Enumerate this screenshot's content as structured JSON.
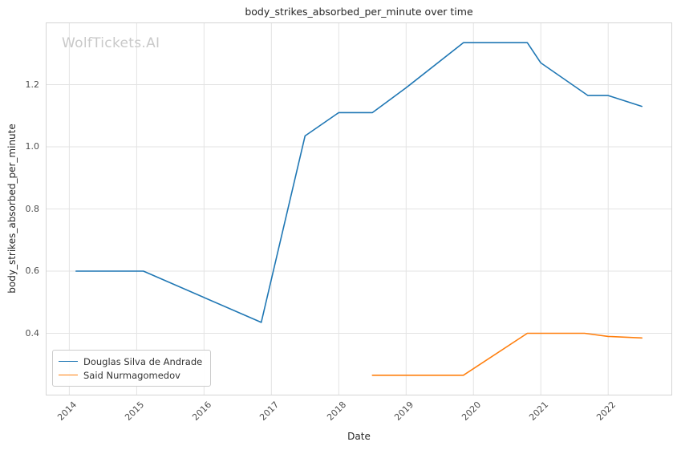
{
  "watermark": {
    "text": "WolfTickets.AI",
    "color": "#c9c9c9"
  },
  "chart_data": {
    "type": "line",
    "title": "body_strikes_absorbed_per_minute over time",
    "xlabel": "Date",
    "ylabel": "body_strikes_absorbed_per_minute",
    "xlim": [
      2013.65,
      2022.95
    ],
    "ylim": [
      0.2,
      1.4
    ],
    "x_ticks": [
      2014,
      2015,
      2016,
      2017,
      2018,
      2019,
      2020,
      2021,
      2022
    ],
    "x_tick_labels": [
      "2014",
      "2015",
      "2016",
      "2017",
      "2018",
      "2019",
      "2020",
      "2021",
      "2022"
    ],
    "y_ticks": [
      0.4,
      0.6,
      0.8,
      1.0,
      1.2
    ],
    "y_tick_labels": [
      "0.4",
      "0.6",
      "0.8",
      "1.0",
      "1.2"
    ],
    "grid": true,
    "grid_color": "#e3e3e3",
    "frame_color": "#d5d5d5",
    "legend_position": "lower left",
    "series": [
      {
        "name": "Douglas Silva de Andrade",
        "color": "#1f77b4",
        "points": [
          [
            2014.1,
            0.6
          ],
          [
            2015.1,
            0.6
          ],
          [
            2016.85,
            0.435
          ],
          [
            2017.5,
            1.035
          ],
          [
            2018.0,
            1.11
          ],
          [
            2018.5,
            1.11
          ],
          [
            2019.0,
            1.19
          ],
          [
            2019.85,
            1.335
          ],
          [
            2020.8,
            1.335
          ],
          [
            2021.0,
            1.27
          ],
          [
            2021.7,
            1.165
          ],
          [
            2022.0,
            1.165
          ],
          [
            2022.5,
            1.13
          ]
        ]
      },
      {
        "name": "Said Nurmagomedov",
        "color": "#ff7f0e",
        "points": [
          [
            2018.5,
            0.265
          ],
          [
            2019.85,
            0.265
          ],
          [
            2020.8,
            0.4
          ],
          [
            2021.65,
            0.4
          ],
          [
            2022.0,
            0.39
          ],
          [
            2022.5,
            0.385
          ]
        ]
      }
    ]
  }
}
